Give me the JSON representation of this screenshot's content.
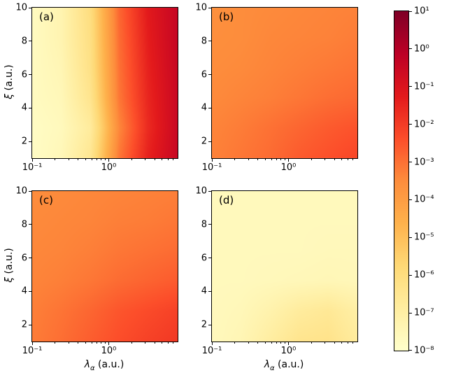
{
  "figure": {
    "xlabel_symbol": "λ",
    "xlabel_sub": "α",
    "xlabel_units": " (a.u.)",
    "ylabel_symbol": "ξ",
    "ylabel_units": " (a.u.)"
  },
  "axes": {
    "x_scale": "log",
    "x_log_range": [
      -1,
      0.9
    ],
    "y_range": [
      1,
      10
    ],
    "x_major_ticks": [
      {
        "label": "10⁻¹",
        "log10": -1
      },
      {
        "label": "10⁰",
        "log10": 0
      }
    ],
    "x_minor_ticks_log10": [
      -0.699,
      -0.523,
      -0.398,
      -0.301,
      -0.222,
      -0.155,
      -0.097,
      -0.046,
      0.301,
      0.477,
      0.602,
      0.699,
      0.778,
      0.845
    ],
    "y_ticks": [
      2,
      4,
      6,
      8,
      10
    ]
  },
  "colorbar": {
    "log10_min": -8,
    "log10_max": 1,
    "ticks": [
      {
        "label": "10¹",
        "log10": 1
      },
      {
        "label": "10⁰",
        "log10": 0
      },
      {
        "label": "10⁻¹",
        "log10": -1
      },
      {
        "label": "10⁻²",
        "log10": -2
      },
      {
        "label": "10⁻³",
        "log10": -3
      },
      {
        "label": "10⁻⁴",
        "log10": -4
      },
      {
        "label": "10⁻⁵",
        "log10": -5
      },
      {
        "label": "10⁻⁶",
        "log10": -6
      },
      {
        "label": "10⁻⁷",
        "log10": -7
      },
      {
        "label": "10⁻⁸",
        "log10": -8
      }
    ]
  },
  "colormap": {
    "name": "YlOrRd",
    "stops": [
      {
        "t": 0.0,
        "color": "#ffffcc"
      },
      {
        "t": 0.125,
        "color": "#ffeda0"
      },
      {
        "t": 0.25,
        "color": "#fed976"
      },
      {
        "t": 0.375,
        "color": "#feb24c"
      },
      {
        "t": 0.5,
        "color": "#fd8d3c"
      },
      {
        "t": 0.625,
        "color": "#fc4e2a"
      },
      {
        "t": 0.75,
        "color": "#e31a1c"
      },
      {
        "t": 0.875,
        "color": "#bd0026"
      },
      {
        "t": 1.0,
        "color": "#800026"
      }
    ]
  },
  "chart_data": [
    {
      "type": "heatmap",
      "title": "(a)",
      "xlabel": "λ_α (a.u.)",
      "ylabel": "ξ (a.u.)",
      "x_scale": "log",
      "x_lambda": [
        0.1,
        0.24,
        0.58,
        1.4,
        3.3,
        7.9
      ],
      "y_xi_top_to_bottom": [
        10,
        8,
        6,
        4,
        2,
        1
      ],
      "value_scale": "log10",
      "color_range_log10": [
        -8,
        1
      ],
      "log10_values": [
        [
          -7.7,
          -7.3,
          -6.0,
          -2.8,
          -1.2,
          -0.4
        ],
        [
          -7.7,
          -7.3,
          -6.1,
          -2.9,
          -1.3,
          -0.4
        ],
        [
          -7.7,
          -7.4,
          -6.2,
          -3.0,
          -1.4,
          -0.45
        ],
        [
          -7.7,
          -7.5,
          -6.4,
          -3.1,
          -1.5,
          -0.5
        ],
        [
          -7.8,
          -7.6,
          -6.8,
          -3.4,
          -1.6,
          -0.5
        ],
        [
          -7.8,
          -7.5,
          -6.5,
          -3.1,
          -1.4,
          -0.45
        ]
      ]
    },
    {
      "type": "heatmap",
      "title": "(b)",
      "xlabel": "λ_α (a.u.)",
      "ylabel": "ξ (a.u.)",
      "x_scale": "log",
      "x_lambda": [
        0.1,
        0.24,
        0.58,
        1.4,
        3.3,
        7.9
      ],
      "y_xi_top_to_bottom": [
        10,
        8,
        6,
        4,
        2,
        1
      ],
      "value_scale": "log10",
      "color_range_log10": [
        -8,
        1
      ],
      "log10_values": [
        [
          -3.6,
          -3.5,
          -3.45,
          -3.4,
          -3.35,
          -3.3
        ],
        [
          -3.55,
          -3.5,
          -3.4,
          -3.35,
          -3.3,
          -3.2
        ],
        [
          -3.5,
          -3.45,
          -3.35,
          -3.25,
          -3.15,
          -3.05
        ],
        [
          -3.45,
          -3.35,
          -3.25,
          -3.1,
          -2.95,
          -2.85
        ],
        [
          -3.35,
          -3.2,
          -3.0,
          -2.8,
          -2.6,
          -2.45
        ],
        [
          -3.3,
          -3.1,
          -2.9,
          -2.6,
          -2.4,
          -2.2
        ]
      ]
    },
    {
      "type": "heatmap",
      "title": "(c)",
      "xlabel": "λ_α (a.u.)",
      "ylabel": "ξ (a.u.)",
      "x_scale": "log",
      "x_lambda": [
        0.1,
        0.24,
        0.58,
        1.4,
        3.3,
        7.9
      ],
      "y_xi_top_to_bottom": [
        10,
        8,
        6,
        4,
        2,
        1
      ],
      "value_scale": "log10",
      "color_range_log10": [
        -8,
        1
      ],
      "log10_values": [
        [
          -3.5,
          -3.45,
          -3.4,
          -3.35,
          -3.3,
          -3.25
        ],
        [
          -3.45,
          -3.4,
          -3.35,
          -3.25,
          -3.2,
          -3.1
        ],
        [
          -3.4,
          -3.35,
          -3.25,
          -3.1,
          -3.0,
          -2.9
        ],
        [
          -3.35,
          -3.25,
          -3.1,
          -2.9,
          -2.75,
          -2.6
        ],
        [
          -3.25,
          -3.05,
          -2.8,
          -2.5,
          -2.3,
          -2.1
        ],
        [
          -3.2,
          -2.95,
          -2.65,
          -2.35,
          -2.1,
          -1.9
        ]
      ]
    },
    {
      "type": "heatmap",
      "title": "(d)",
      "xlabel": "λ_α (a.u.)",
      "ylabel": "ξ (a.u.)",
      "x_scale": "log",
      "x_lambda": [
        0.1,
        0.24,
        0.58,
        1.4,
        3.3,
        7.9
      ],
      "y_xi_top_to_bottom": [
        10,
        8,
        6,
        4,
        2,
        1
      ],
      "value_scale": "log10",
      "color_range_log10": [
        -8,
        1
      ],
      "log10_values": [
        [
          -7.6,
          -7.6,
          -7.6,
          -7.6,
          -7.6,
          -7.6
        ],
        [
          -7.6,
          -7.6,
          -7.6,
          -7.6,
          -7.6,
          -7.6
        ],
        [
          -7.6,
          -7.6,
          -7.6,
          -7.6,
          -7.55,
          -7.55
        ],
        [
          -7.6,
          -7.6,
          -7.55,
          -7.5,
          -7.45,
          -7.5
        ],
        [
          -7.6,
          -7.5,
          -7.2,
          -6.8,
          -6.6,
          -7.0
        ],
        [
          -7.6,
          -7.4,
          -6.9,
          -6.4,
          -6.3,
          -6.8
        ]
      ]
    }
  ]
}
